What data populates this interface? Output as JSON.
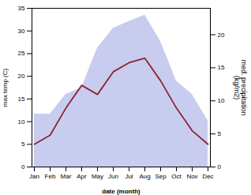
{
  "chart_data": {
    "type": "line",
    "xlabel": "date (month)",
    "ylabel": "max temp (C)",
    "y2label": "med. precipitation\n(kg/m2)",
    "categories": [
      "Jan",
      "Feb",
      "Mar",
      "Apr",
      "May",
      "Jun",
      "Jul",
      "Aug",
      "Sep",
      "Oct",
      "Nov",
      "Dec"
    ],
    "ylim": [
      0,
      35
    ],
    "yticks": [
      0,
      5,
      10,
      15,
      20,
      25,
      30,
      35
    ],
    "y2lim": [
      0,
      24
    ],
    "y2ticks": [
      0,
      5,
      10,
      15,
      20
    ],
    "grid": false,
    "series": [
      {
        "type": "area",
        "axis": "y2",
        "color": "#b0b8e8",
        "values": [
          8,
          8,
          11,
          12,
          18,
          21,
          22,
          23,
          19,
          13,
          11,
          7
        ]
      },
      {
        "type": "line",
        "color": "#8b2535",
        "values": [
          5,
          7,
          13,
          18,
          16,
          21,
          23,
          24,
          19,
          13,
          8,
          5
        ]
      }
    ]
  }
}
